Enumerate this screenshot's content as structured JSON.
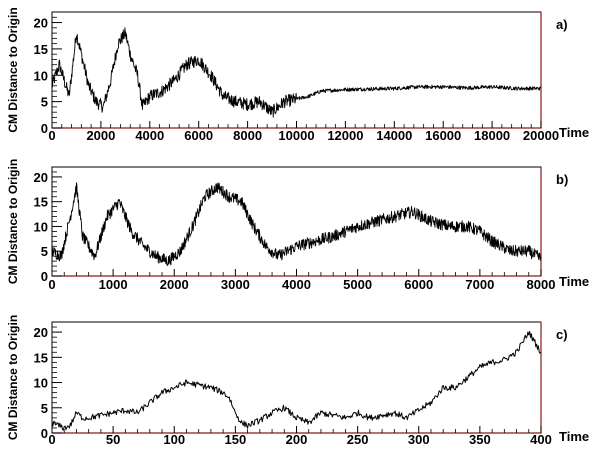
{
  "chart_data": [
    {
      "type": "line",
      "panel_label": "a)",
      "xlabel": "Time",
      "ylabel": "CM Distance to Origin",
      "xlim": [
        0,
        20000
      ],
      "ylim": [
        0,
        22
      ],
      "xticks": [
        0,
        2000,
        4000,
        6000,
        8000,
        10000,
        12000,
        14000,
        16000,
        18000,
        20000
      ],
      "yticks": [
        0,
        5,
        10,
        15,
        20
      ],
      "grid": false,
      "series": [
        {
          "x": [
            0,
            300,
            700,
            1000,
            1200,
            1500,
            1800,
            2100,
            2400,
            2700,
            3000,
            3200,
            3500,
            3700,
            4000,
            4500,
            5000,
            5500,
            6000,
            6500,
            7000,
            7500,
            8000,
            8500,
            9000,
            9500,
            10000,
            10500,
            11000,
            12000,
            13000,
            14000,
            15000,
            16000,
            17000,
            18000,
            19000,
            20000
          ],
          "y": [
            8,
            12,
            6,
            18,
            14,
            8,
            5,
            4,
            9,
            16,
            18,
            14,
            10,
            4,
            6,
            7,
            9,
            12,
            13,
            10,
            6,
            5,
            4.5,
            5,
            3,
            5,
            5.5,
            6,
            7,
            7.3,
            7.4,
            7.5,
            7.8,
            7.8,
            7.6,
            7.8,
            7.5,
            7.5
          ]
        }
      ]
    },
    {
      "type": "line",
      "panel_label": "b)",
      "xlabel": "Time",
      "ylabel": "CM Distance to Origin",
      "xlim": [
        0,
        8000
      ],
      "ylim": [
        0,
        22
      ],
      "xticks": [
        0,
        1000,
        2000,
        3000,
        4000,
        5000,
        6000,
        7000,
        8000
      ],
      "yticks": [
        0,
        5,
        10,
        15,
        20
      ],
      "grid": false,
      "series": [
        {
          "x": [
            0,
            150,
            300,
            400,
            500,
            700,
            900,
            1100,
            1300,
            1500,
            1700,
            1900,
            2100,
            2300,
            2500,
            2700,
            2900,
            3100,
            3300,
            3500,
            3700,
            4000,
            4300,
            4600,
            5000,
            5300,
            5600,
            5900,
            6200,
            6500,
            6800,
            7000,
            7200,
            7500,
            7800,
            8000
          ],
          "y": [
            5,
            4,
            12,
            18,
            8,
            4,
            12,
            15,
            9,
            6,
            4,
            3,
            5,
            10,
            16,
            18,
            16,
            15,
            10,
            6,
            4,
            6,
            7,
            8,
            10,
            11,
            12,
            13,
            11,
            10,
            10,
            9,
            7,
            5,
            5,
            3.5
          ]
        }
      ]
    },
    {
      "type": "line",
      "panel_label": "c)",
      "xlabel": "Time",
      "ylabel": "CM Distance to Origin",
      "xlim": [
        0,
        400
      ],
      "ylim": [
        0,
        22
      ],
      "xticks": [
        0,
        50,
        100,
        150,
        200,
        250,
        300,
        350,
        400
      ],
      "yticks": [
        0,
        5,
        10,
        15,
        20
      ],
      "grid": false,
      "series": [
        {
          "x": [
            0,
            5,
            10,
            15,
            20,
            25,
            30,
            40,
            50,
            60,
            70,
            80,
            90,
            100,
            110,
            120,
            130,
            140,
            145,
            150,
            155,
            160,
            170,
            180,
            190,
            200,
            210,
            220,
            230,
            240,
            250,
            260,
            270,
            280,
            290,
            300,
            310,
            320,
            330,
            340,
            350,
            360,
            370,
            380,
            385,
            390,
            395,
            400
          ],
          "y": [
            2,
            1.5,
            1,
            1.5,
            4,
            3,
            3,
            3.5,
            4,
            4.5,
            4,
            6,
            8,
            9,
            10,
            9.5,
            9,
            8,
            7,
            4,
            2,
            1.5,
            2.5,
            4,
            5,
            3,
            2,
            4,
            3.5,
            3,
            4,
            3,
            3.5,
            4,
            3,
            4.5,
            6,
            9,
            9,
            11,
            13,
            14,
            14.5,
            16,
            18,
            20,
            18,
            16
          ]
        }
      ]
    }
  ]
}
